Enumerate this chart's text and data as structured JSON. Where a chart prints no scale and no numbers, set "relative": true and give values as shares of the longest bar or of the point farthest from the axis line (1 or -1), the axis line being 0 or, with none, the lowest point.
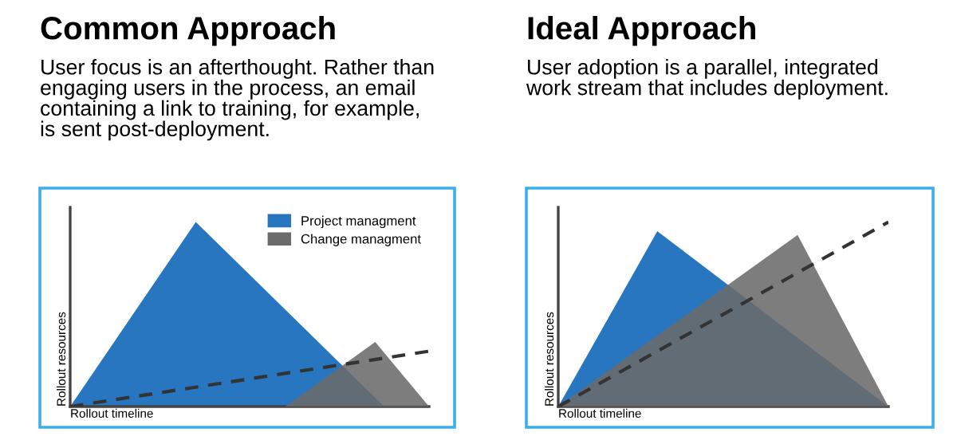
{
  "chart_data": [
    {
      "type": "area",
      "title": "Common Approach",
      "subtitle": "User focus is an afterthought. Rather than\nengaging users in the process, an email\ncontaining a link to training, for example,\nis sent post-deployment.",
      "xlabel": "Rollout timeline",
      "ylabel": "Rollout resources",
      "relative": true,
      "tick_labels": false,
      "legend": "top right",
      "categories": [
        null,
        null,
        null,
        null,
        null,
        null,
        null,
        null,
        null,
        null,
        null,
        null,
        null,
        null,
        null,
        null,
        null,
        null,
        null,
        null,
        null,
        null,
        null,
        null,
        null,
        null,
        null,
        null,
        null,
        null,
        null,
        null,
        null,
        null,
        null,
        null,
        null,
        null,
        null,
        null,
        null
      ],
      "series": [
        {
          "name": "Project managment",
          "color": "#2776bf",
          "values": [
            0,
            null,
            null,
            null,
            null,
            null,
            null,
            null,
            null,
            null,
            null,
            null,
            null,
            null,
            1,
            null,
            null,
            null,
            null,
            null,
            null,
            null,
            null,
            null,
            null,
            null,
            null,
            null,
            null,
            null,
            null,
            null,
            null,
            null,
            null,
            0,
            null,
            null,
            null,
            null,
            null
          ]
        },
        {
          "name": "Change managment",
          "color": "#6b6b6b",
          "values": [
            null,
            null,
            null,
            null,
            null,
            null,
            null,
            null,
            null,
            null,
            null,
            null,
            null,
            null,
            null,
            null,
            null,
            null,
            null,
            null,
            null,
            null,
            null,
            null,
            0,
            null,
            null,
            null,
            null,
            null,
            null,
            null,
            null,
            null,
            0.35,
            null,
            null,
            null,
            null,
            null,
            0
          ]
        },
        {
          "type": "line",
          "color": "#333333",
          "line_style": "dashed",
          "values": [
            0,
            null,
            null,
            null,
            null,
            null,
            null,
            null,
            null,
            null,
            null,
            null,
            null,
            null,
            null,
            null,
            null,
            null,
            null,
            null,
            null,
            null,
            null,
            null,
            null,
            null,
            null,
            null,
            null,
            null,
            null,
            null,
            null,
            null,
            null,
            null,
            null,
            null,
            null,
            null,
            0.3
          ]
        }
      ]
    },
    {
      "type": "area",
      "title": "Ideal Approach",
      "subtitle": "User adoption is a parallel, integrated\nwork stream that includes deployment.",
      "xlabel": "Rollout timeline",
      "ylabel": "Rollout resources",
      "relative": true,
      "tick_labels": false,
      "categories": [
        null,
        null,
        null,
        null,
        null,
        null,
        null,
        null,
        null,
        null,
        null,
        null,
        null,
        null,
        null,
        null,
        null,
        null,
        null,
        null,
        null,
        null,
        null,
        null,
        null,
        null,
        null,
        null,
        null,
        null,
        null,
        null,
        null,
        null,
        null,
        null,
        null,
        null,
        null,
        null,
        null
      ],
      "series": [
        {
          "color": "#2776bf",
          "values": [
            0,
            null,
            null,
            null,
            null,
            null,
            null,
            null,
            null,
            null,
            null,
            null,
            0.95,
            null,
            null,
            null,
            null,
            null,
            null,
            null,
            null,
            null,
            null,
            null,
            null,
            null,
            null,
            null,
            null,
            null,
            null,
            null,
            null,
            null,
            null,
            null,
            null,
            null,
            null,
            null,
            0
          ]
        },
        {
          "color": "#6b6b6b",
          "values": [
            0,
            null,
            null,
            null,
            null,
            null,
            null,
            null,
            null,
            null,
            null,
            null,
            null,
            null,
            null,
            null,
            null,
            null,
            null,
            null,
            null,
            null,
            null,
            null,
            null,
            null,
            null,
            null,
            null,
            0.93,
            null,
            null,
            null,
            null,
            null,
            null,
            null,
            null,
            null,
            null,
            0
          ]
        },
        {
          "type": "line",
          "color": "#333333",
          "line_style": "dashed",
          "values": [
            0,
            null,
            null,
            null,
            null,
            null,
            null,
            null,
            null,
            null,
            null,
            null,
            null,
            null,
            null,
            null,
            null,
            null,
            null,
            null,
            null,
            null,
            null,
            null,
            null,
            null,
            null,
            null,
            null,
            null,
            null,
            null,
            null,
            null,
            null,
            null,
            null,
            null,
            null,
            null,
            1
          ]
        }
      ]
    }
  ]
}
